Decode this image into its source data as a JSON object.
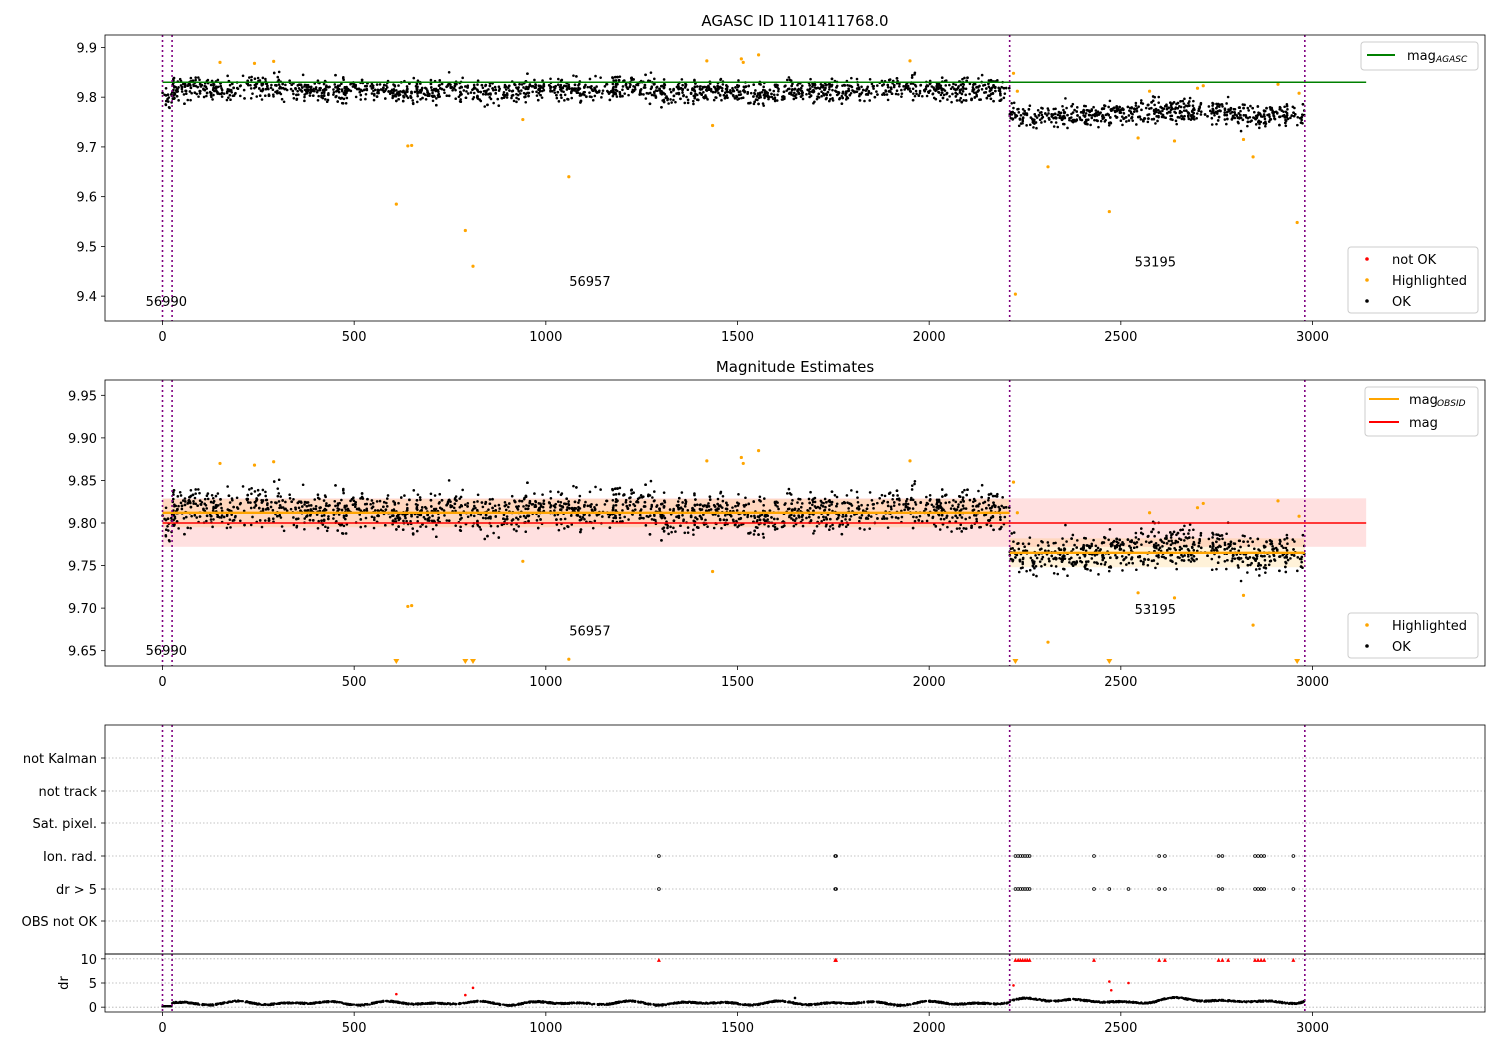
{
  "chart_data": [
    {
      "type": "scatter",
      "title": "AGASC ID 1101411768.0",
      "xlim": [
        -150,
        3450
      ],
      "ylim": [
        9.35,
        9.925
      ],
      "xticks": [
        0,
        500,
        1000,
        1500,
        2000,
        2500,
        3000
      ],
      "yticks": [
        9.4,
        9.5,
        9.6,
        9.7,
        9.8,
        9.9
      ],
      "ytick_labels": [
        "9.4",
        "9.5",
        "9.6",
        "9.7",
        "9.8",
        "9.9"
      ],
      "obsid_boundaries": [
        0,
        25,
        2210,
        2980
      ],
      "obsid_labels": [
        {
          "text": "56990",
          "x": 10,
          "y": 9.38
        },
        {
          "text": "56957",
          "x": 1115,
          "y": 9.42
        },
        {
          "text": "53195",
          "x": 2590,
          "y": 9.46
        }
      ],
      "mag_agasc": 9.83,
      "ok_segments": [
        {
          "x0": 0,
          "x1": 2210,
          "mean": 9.812,
          "std": 0.019
        },
        {
          "x0": 2210,
          "x1": 2980,
          "mean": 9.765,
          "std": 0.016
        }
      ],
      "highlighted_points": [
        [
          150,
          9.87
        ],
        [
          240,
          9.868
        ],
        [
          290,
          9.872
        ],
        [
          610,
          9.585
        ],
        [
          640,
          9.702
        ],
        [
          650,
          9.703
        ],
        [
          790,
          9.532
        ],
        [
          810,
          9.46
        ],
        [
          940,
          9.755
        ],
        [
          1060,
          9.64
        ],
        [
          1420,
          9.873
        ],
        [
          1435,
          9.743
        ],
        [
          1510,
          9.877
        ],
        [
          1515,
          9.87
        ],
        [
          1555,
          9.885
        ],
        [
          1950,
          9.873
        ],
        [
          2220,
          9.848
        ],
        [
          2225,
          9.404
        ],
        [
          2230,
          9.812
        ],
        [
          2310,
          9.66
        ],
        [
          2470,
          9.57
        ],
        [
          2545,
          9.718
        ],
        [
          2575,
          9.812
        ],
        [
          2640,
          9.712
        ],
        [
          2700,
          9.818
        ],
        [
          2715,
          9.823
        ],
        [
          2820,
          9.715
        ],
        [
          2845,
          9.68
        ],
        [
          2910,
          9.826
        ],
        [
          2960,
          9.548
        ],
        [
          2965,
          9.808
        ]
      ],
      "legend_lines": [
        {
          "label": "mag",
          "sub": "AGASC",
          "color": "#008000"
        }
      ],
      "legend_points": [
        {
          "label": "not OK",
          "color": "#ff0000"
        },
        {
          "label": "Highlighted",
          "color": "#ffa500"
        },
        {
          "label": "OK",
          "color": "#000000"
        }
      ],
      "legend_placement": [
        "top-right",
        "bottom-right"
      ]
    },
    {
      "type": "scatter",
      "title": "Magnitude Estimates",
      "xlim": [
        -150,
        3450
      ],
      "ylim": [
        9.632,
        9.968
      ],
      "xticks": [
        0,
        500,
        1000,
        1500,
        2000,
        2500,
        3000
      ],
      "yticks": [
        9.65,
        9.7,
        9.75,
        9.8,
        9.85,
        9.9,
        9.95
      ],
      "ytick_labels": [
        "9.65",
        "9.70",
        "9.75",
        "9.80",
        "9.85",
        "9.90",
        "9.95"
      ],
      "mag": 9.8,
      "mag_band": [
        9.772,
        9.829
      ],
      "mag_obsid": [
        {
          "x0": 0,
          "x1": 2210,
          "value": 9.812,
          "band": [
            9.795,
            9.828
          ]
        },
        {
          "x0": 2210,
          "x1": 2980,
          "value": 9.765,
          "band": [
            9.748,
            9.782
          ]
        }
      ],
      "obsid_labels": [
        {
          "text": "56990",
          "x": 10,
          "y": 9.645
        },
        {
          "text": "56957",
          "x": 1115,
          "y": 9.668
        },
        {
          "text": "53195",
          "x": 2590,
          "y": 9.693
        }
      ],
      "clipped_points_x": [
        610,
        790,
        810,
        2225,
        2470,
        2960
      ],
      "legend_lines": [
        {
          "label": "mag",
          "sub": "OBSID",
          "color": "#ffa500"
        },
        {
          "label": "mag",
          "sub": "",
          "color": "#ff0000"
        }
      ],
      "legend_points": [
        {
          "label": "Highlighted",
          "color": "#ffa500"
        },
        {
          "label": "OK",
          "color": "#000000"
        }
      ],
      "legend_placement": [
        "top-right",
        "bottom-right"
      ]
    },
    {
      "type": "scatter",
      "xlim": [
        -150,
        3450
      ],
      "xticks": [
        0,
        500,
        1000,
        1500,
        2000,
        2500,
        3000
      ],
      "flag_rows": [
        "not Kalman",
        "not track",
        "Sat. pixel.",
        "Ion. rad.",
        "dr > 5",
        "OBS not OK"
      ],
      "flag_points": {
        "Ion. rad.": [
          1295,
          1755,
          1757,
          2225,
          2232,
          2238,
          2244,
          2250,
          2256,
          2262,
          2430,
          2600,
          2615,
          2755,
          2765,
          2850,
          2858,
          2866,
          2874,
          2950
        ],
        "dr > 5": [
          1295,
          1755,
          1757,
          2225,
          2232,
          2238,
          2244,
          2250,
          2256,
          2262,
          2430,
          2470,
          2520,
          2600,
          2615,
          2755,
          2765,
          2850,
          2858,
          2866,
          2874,
          2950
        ]
      },
      "dr": {
        "ylabel": "dr",
        "ylim": [
          -1,
          11
        ],
        "yticks": [
          0,
          5,
          10
        ],
        "ytick_labels": [
          "0",
          "5",
          "10"
        ],
        "clip_value": 10,
        "clipped_x": [
          1295,
          1755,
          1757,
          2225,
          2232,
          2238,
          2244,
          2250,
          2256,
          2262,
          2430,
          2600,
          2615,
          2755,
          2765,
          2780,
          2850,
          2858,
          2866,
          2874,
          2950
        ],
        "outliers": [
          [
            610,
            2.7
          ],
          [
            790,
            2.5
          ],
          [
            810,
            4.0
          ],
          [
            2220,
            4.5
          ],
          [
            2470,
            5.3
          ],
          [
            2475,
            3.5
          ],
          [
            2520,
            5.0
          ],
          [
            1650,
            1.9
          ]
        ]
      }
    }
  ]
}
